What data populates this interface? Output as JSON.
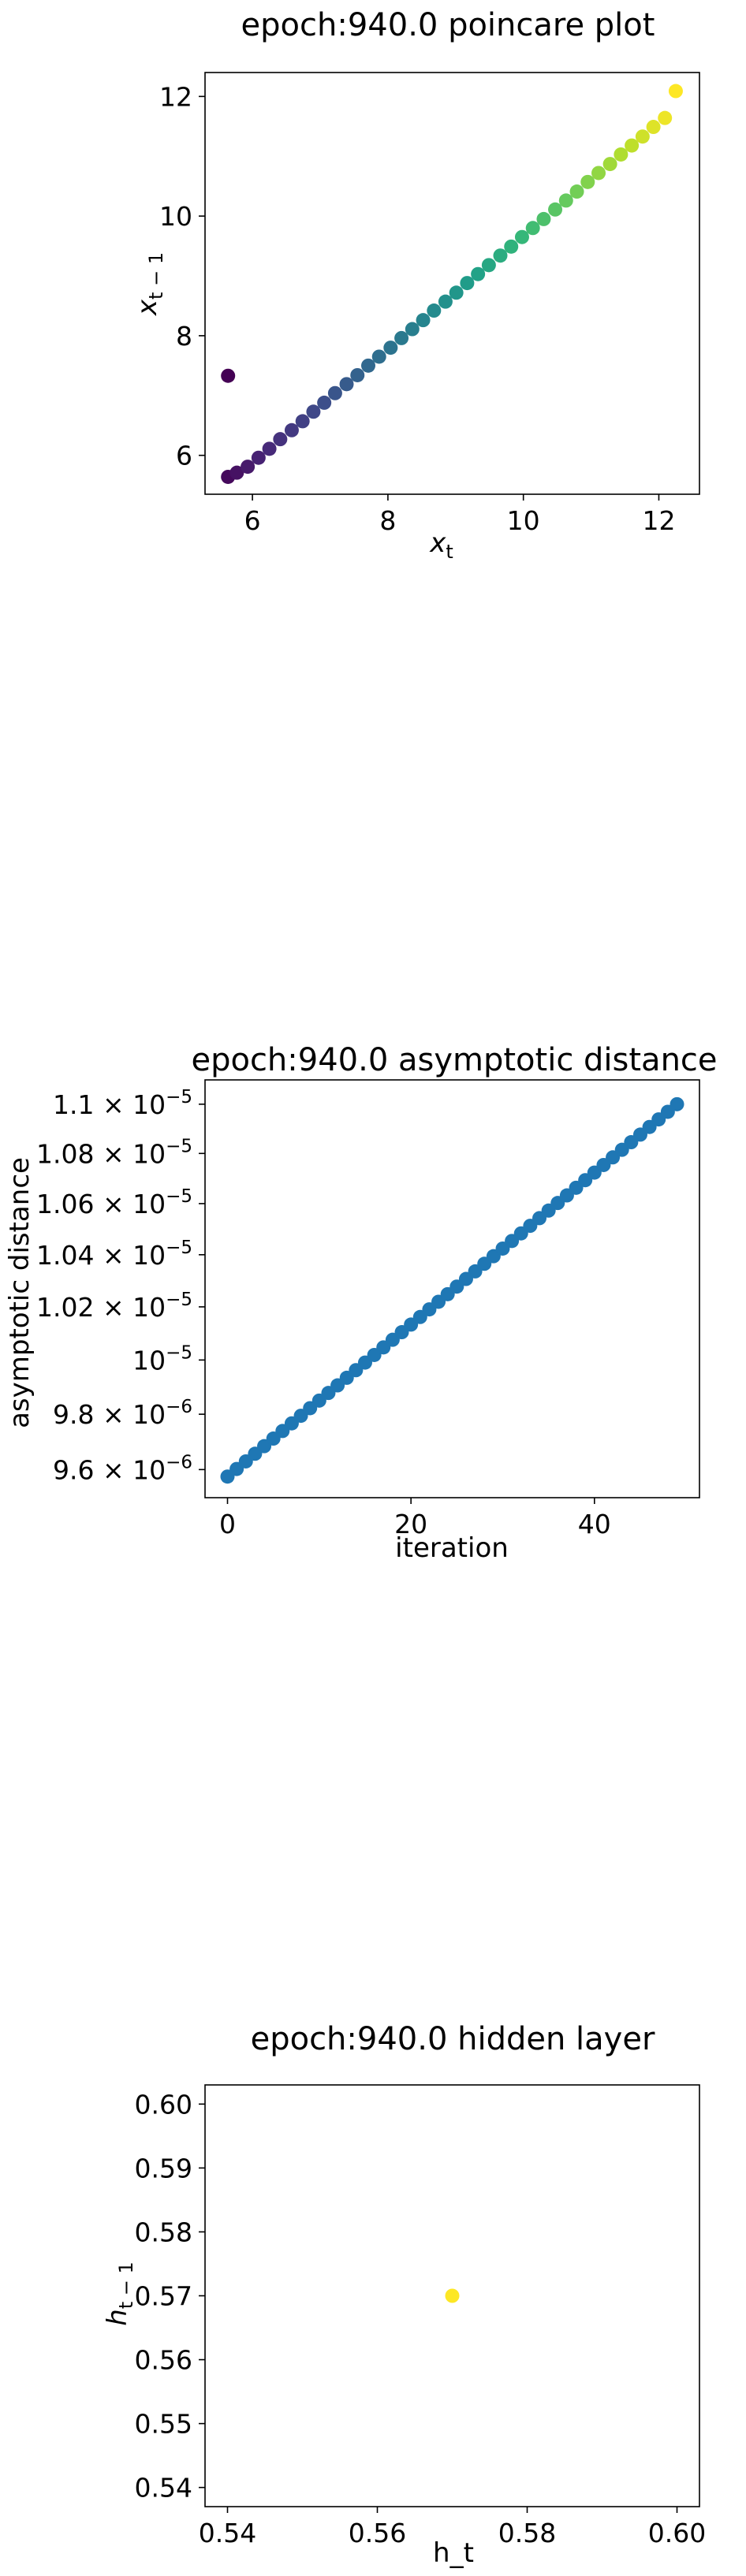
{
  "chart_data": [
    {
      "type": "scatter",
      "title": "epoch:940.0 poincare plot",
      "xlabel": "x_t",
      "ylabel": "x_{t-1}",
      "xlim": [
        5.3,
        12.6
      ],
      "ylim": [
        5.35,
        12.4
      ],
      "xticks": [
        6,
        8,
        10,
        12
      ],
      "yticks": [
        6,
        8,
        10,
        12
      ],
      "colormap": "viridis",
      "grid": false,
      "x": [
        5.64,
        5.64,
        5.77,
        5.93,
        6.09,
        6.25,
        6.41,
        6.58,
        6.74,
        6.9,
        7.06,
        7.22,
        7.39,
        7.55,
        7.71,
        7.87,
        8.04,
        8.2,
        8.36,
        8.52,
        8.68,
        8.85,
        9.01,
        9.17,
        9.33,
        9.49,
        9.66,
        9.82,
        9.98,
        10.14,
        10.3,
        10.47,
        10.63,
        10.79,
        10.95,
        11.11,
        11.28,
        11.44,
        11.6,
        11.76,
        11.92,
        12.09,
        12.25
      ],
      "y": [
        7.33,
        5.64,
        5.71,
        5.81,
        5.96,
        6.11,
        6.27,
        6.42,
        6.57,
        6.73,
        6.88,
        7.04,
        7.19,
        7.34,
        7.5,
        7.65,
        7.8,
        7.96,
        8.11,
        8.26,
        8.42,
        8.57,
        8.72,
        8.88,
        9.03,
        9.18,
        9.34,
        9.49,
        9.65,
        9.8,
        9.95,
        10.11,
        10.26,
        10.41,
        10.57,
        10.72,
        10.87,
        11.03,
        11.18,
        11.33,
        11.49,
        11.64,
        12.09
      ]
    },
    {
      "type": "scatter",
      "title": "epoch:940.0 asymptotic distance",
      "xlabel": "iteration",
      "ylabel": "asymptotic distance",
      "xlim": [
        -2.45,
        51.45
      ],
      "ylim": [
        9.5e-06,
        1.11e-05
      ],
      "yscale": "log",
      "xticks": [
        0,
        20,
        40
      ],
      "yticks": [
        {
          "value": 9.6e-06,
          "mantissa": "9.6",
          "exponent": "−6"
        },
        {
          "value": 9.8e-06,
          "mantissa": "9.8",
          "exponent": "−6"
        },
        {
          "value": 1e-05,
          "mantissa": "",
          "exponent": "−5"
        },
        {
          "value": 1.02e-05,
          "mantissa": "1.02",
          "exponent": "−5"
        },
        {
          "value": 1.04e-05,
          "mantissa": "1.04",
          "exponent": "−5"
        },
        {
          "value": 1.06e-05,
          "mantissa": "1.06",
          "exponent": "−5"
        },
        {
          "value": 1.08e-05,
          "mantissa": "1.08",
          "exponent": "−5"
        },
        {
          "value": 1.1e-05,
          "mantissa": "1.1",
          "exponent": "−5"
        }
      ],
      "color": "#1f77b4",
      "grid": false,
      "x_start": 0,
      "x_end": 49,
      "y_start": 9.575e-06,
      "y_end": 1.1e-05
    },
    {
      "type": "scatter",
      "title": "epoch:940.0 hidden layer",
      "xlabel": "h_t",
      "ylabel": "h_{t-1}",
      "xlim": [
        0.537,
        0.603
      ],
      "ylim": [
        0.537,
        0.603
      ],
      "xticks": [
        "0.54",
        "0.56",
        "0.58",
        "0.60"
      ],
      "yticks": [
        "0.54",
        "0.55",
        "0.56",
        "0.57",
        "0.58",
        "0.59",
        "0.60"
      ],
      "grid": false,
      "x": [
        0.57
      ],
      "y": [
        0.57
      ],
      "color": "#fde725"
    }
  ]
}
